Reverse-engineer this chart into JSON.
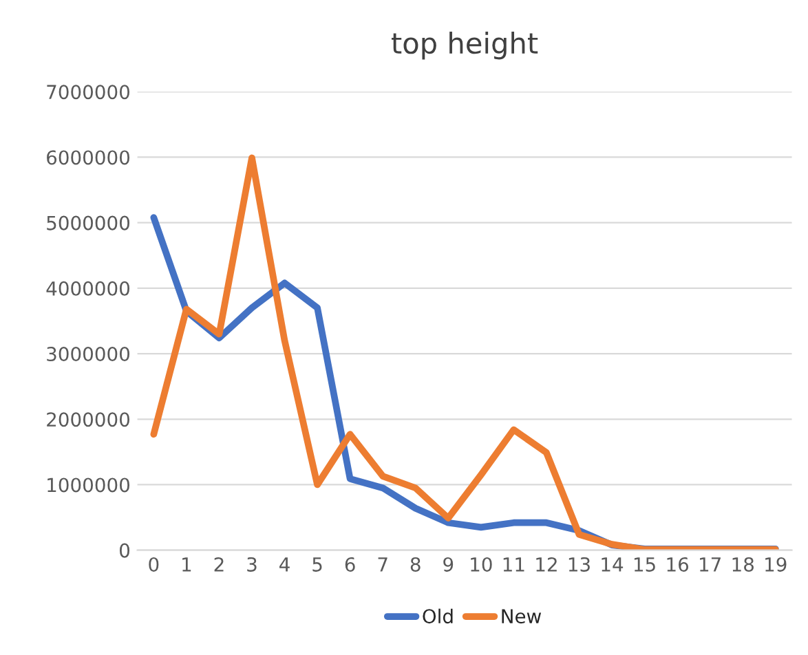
{
  "chart_data": {
    "type": "line",
    "title": "top height",
    "categories": [
      "0",
      "1",
      "2",
      "3",
      "4",
      "5",
      "6",
      "7",
      "8",
      "9",
      "10",
      "11",
      "12",
      "13",
      "14",
      "15",
      "16",
      "17",
      "18",
      "19"
    ],
    "series": [
      {
        "name": "Old",
        "color": "#4472c4",
        "values": [
          5080000,
          3650000,
          3240000,
          3700000,
          4080000,
          3700000,
          1090000,
          950000,
          640000,
          420000,
          350000,
          420000,
          420000,
          300000,
          80000,
          20000,
          20000,
          20000,
          20000,
          20000
        ]
      },
      {
        "name": "New",
        "color": "#ed7d31",
        "values": [
          1770000,
          3680000,
          3300000,
          5990000,
          3200000,
          1000000,
          1770000,
          1130000,
          950000,
          490000,
          1150000,
          1840000,
          1490000,
          240000,
          90000,
          10000,
          10000,
          10000,
          10000,
          10000
        ]
      }
    ],
    "ylim": [
      0,
      7000000
    ],
    "yticks": [
      0,
      1000000,
      2000000,
      3000000,
      4000000,
      5000000,
      6000000,
      7000000
    ],
    "grid": "y",
    "legend": "bottom",
    "marker": "none",
    "line_style": "solid"
  }
}
